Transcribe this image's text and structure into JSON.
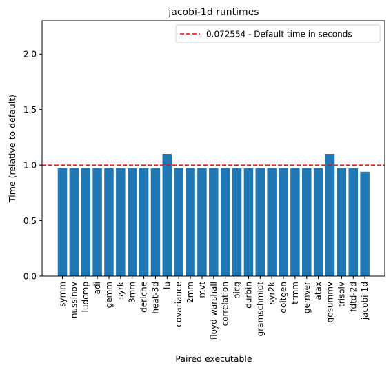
{
  "chart_data": {
    "type": "bar",
    "title": "jacobi-1d runtimes",
    "xlabel": "Paired executable",
    "ylabel": "Time (relative to default)",
    "ylim": [
      0,
      2.3
    ],
    "yticks": [
      "0.0",
      "0.5",
      "1.0",
      "1.5",
      "2.0"
    ],
    "categories": [
      "symm",
      "nussinov",
      "ludcmp",
      "adi",
      "gemm",
      "syrk",
      "3mm",
      "deriche",
      "heat-3d",
      "lu",
      "covariance",
      "2mm",
      "mvt",
      "floyd-warshall",
      "correlation",
      "bicg",
      "durbin",
      "gramschmidt",
      "syr2k",
      "doitgen",
      "trmm",
      "gemver",
      "atax",
      "gesummv",
      "trisolv",
      "fdtd-2d",
      "jacobi-1d"
    ],
    "values": [
      0.97,
      0.97,
      0.97,
      0.97,
      0.97,
      0.97,
      0.97,
      0.97,
      0.97,
      1.1,
      0.97,
      0.97,
      0.97,
      0.97,
      0.97,
      0.97,
      0.97,
      0.97,
      0.97,
      0.97,
      0.97,
      0.97,
      0.97,
      1.1,
      0.97,
      0.97,
      0.94
    ],
    "bar_color": "#1f77b4",
    "reference_line": {
      "y": 1.0,
      "color": "#ff0000",
      "style": "dashed",
      "label": "0.072554 - Default time in seconds"
    },
    "legend_position": "top-right",
    "grid": false
  }
}
